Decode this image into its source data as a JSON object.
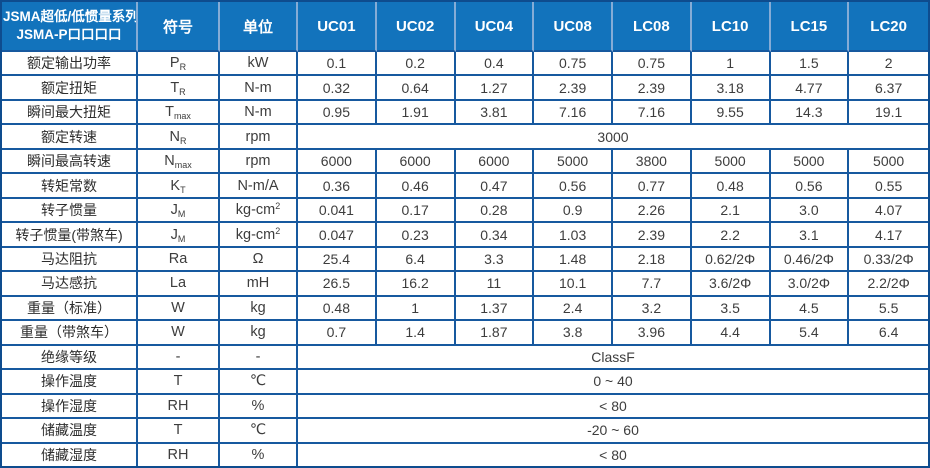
{
  "table": {
    "title_line1": "JSMA超低/低惯量系列",
    "title_line2": "JSMA-P口口口口",
    "symbol_header": "符号",
    "unit_header": "单位",
    "columns": [
      "UC01",
      "UC02",
      "UC04",
      "UC08",
      "LC08",
      "LC10",
      "LC15",
      "LC20"
    ],
    "rows": [
      {
        "label": "额定输出功率",
        "sym": "P",
        "sym_sub": "R",
        "unit": "kW",
        "values": [
          "0.1",
          "0.2",
          "0.4",
          "0.75",
          "0.75",
          "1",
          "1.5",
          "2"
        ]
      },
      {
        "label": "额定扭矩",
        "sym": "T",
        "sym_sub": "R",
        "unit": "N-m",
        "values": [
          "0.32",
          "0.64",
          "1.27",
          "2.39",
          "2.39",
          "3.18",
          "4.77",
          "6.37"
        ]
      },
      {
        "label": "瞬间最大扭矩",
        "sym": "T",
        "sym_sub": "max",
        "unit": "N-m",
        "values": [
          "0.95",
          "1.91",
          "3.81",
          "7.16",
          "7.16",
          "9.55",
          "14.3",
          "19.1"
        ]
      },
      {
        "label": "额定转速",
        "sym": "N",
        "sym_sub": "R",
        "unit": "rpm",
        "merged": "3000"
      },
      {
        "label": "瞬间最高转速",
        "sym": "N",
        "sym_sub": "max",
        "unit": "rpm",
        "values": [
          "6000",
          "6000",
          "6000",
          "5000",
          "3800",
          "5000",
          "5000",
          "5000"
        ]
      },
      {
        "label": "转矩常数",
        "sym": "K",
        "sym_sub": "T",
        "unit": "N-m/A",
        "values": [
          "0.36",
          "0.46",
          "0.47",
          "0.56",
          "0.77",
          "0.48",
          "0.56",
          "0.55"
        ]
      },
      {
        "label": "转子惯量",
        "sym": "J",
        "sym_sub": "M",
        "unit": "kg-cm",
        "unit_sup": "2",
        "values": [
          "0.041",
          "0.17",
          "0.28",
          "0.9",
          "2.26",
          "2.1",
          "3.0",
          "4.07"
        ]
      },
      {
        "label": "转子惯量(带煞车)",
        "sym": "J",
        "sym_sub": "M",
        "unit": "kg-cm",
        "unit_sup": "2",
        "values": [
          "0.047",
          "0.23",
          "0.34",
          "1.03",
          "2.39",
          "2.2",
          "3.1",
          "4.17"
        ]
      },
      {
        "label": "马达阻抗",
        "sym": "Ra",
        "unit": "Ω",
        "values": [
          "25.4",
          "6.4",
          "3.3",
          "1.48",
          "2.18",
          "0.62/2Φ",
          "0.46/2Φ",
          "0.33/2Φ"
        ]
      },
      {
        "label": "马达感抗",
        "sym": "La",
        "unit": "mH",
        "values": [
          "26.5",
          "16.2",
          "11",
          "10.1",
          "7.7",
          "3.6/2Φ",
          "3.0/2Φ",
          "2.2/2Φ"
        ]
      },
      {
        "label": "重量（标准）",
        "sym": "W",
        "unit": "kg",
        "values": [
          "0.48",
          "1",
          "1.37",
          "2.4",
          "3.2",
          "3.5",
          "4.5",
          "5.5"
        ]
      },
      {
        "label": "重量（带煞车）",
        "sym": "W",
        "unit": "kg",
        "values": [
          "0.7",
          "1.4",
          "1.87",
          "3.8",
          "3.96",
          "4.4",
          "5.4",
          "6.4"
        ]
      },
      {
        "label": "绝缘等级",
        "sym": "-",
        "unit": "-",
        "merged": "ClassF"
      },
      {
        "label": "操作温度",
        "sym": "T",
        "unit": "℃",
        "merged": "0 ~ 40"
      },
      {
        "label": "操作湿度",
        "sym": "RH",
        "unit": "%",
        "merged": "< 80"
      },
      {
        "label": "储藏温度",
        "sym": "T",
        "unit": "℃",
        "merged": "-20 ~ 60"
      },
      {
        "label": "储藏湿度",
        "sym": "RH",
        "unit": "%",
        "merged": "< 80"
      }
    ],
    "colors": {
      "header_bg": "#1273BC",
      "border": "#17599F",
      "outer_border": "#0E4C8E",
      "header_separator": "#85ACD6",
      "header_text": "#FFFFFF",
      "value_text": "#3D3D3D"
    }
  }
}
